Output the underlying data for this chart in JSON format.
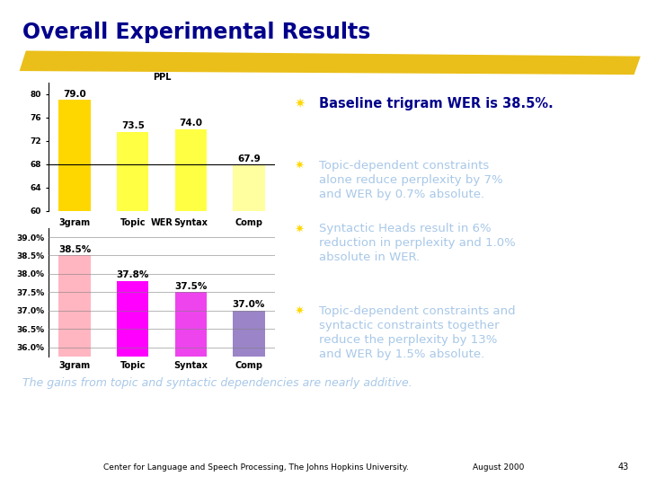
{
  "title": "Overall Experimental Results",
  "title_color": "#00008B",
  "background_color": "#FFFFFF",
  "ppl_categories": [
    "3gram",
    "Topic",
    "Syntax",
    "Comp"
  ],
  "ppl_values": [
    79.0,
    73.5,
    74.0,
    67.9
  ],
  "ppl_colors": [
    "#FFD700",
    "#FFFF44",
    "#FFFF44",
    "#FFFFA0"
  ],
  "ppl_ylabel": "PPL",
  "ppl_ylim": [
    60,
    82
  ],
  "ppl_yticks": [
    60,
    64,
    68,
    72,
    76,
    80
  ],
  "ppl_hline": 68,
  "wer_categories": [
    "3gram",
    "Topic",
    "Syntax",
    "Comp"
  ],
  "wer_values": [
    38.5,
    37.8,
    37.5,
    37.0
  ],
  "wer_colors": [
    "#FFB6C1",
    "#FF00FF",
    "#EE44EE",
    "#9B84C8"
  ],
  "wer_ylabel": "WER",
  "wer_ylim": [
    35.75,
    39.25
  ],
  "wer_ytick_labels": [
    "36.0%",
    "36.5%",
    "37.0%",
    "37.5%",
    "38.0%",
    "38.5%",
    "39.0%"
  ],
  "wer_ytick_vals": [
    36.0,
    36.5,
    37.0,
    37.5,
    38.0,
    38.5,
    39.0
  ],
  "bullet_symbol": "✷",
  "bullet_symbol_color": "#FFD700",
  "bullets": [
    {
      "text": "Baseline trigram WER is 38.5%.",
      "color": "#00008B",
      "bold": true,
      "size": 10.5
    },
    {
      "text": "Topic-dependent constraints\nalone reduce perplexity by 7%\nand WER by 0.7% absolute.",
      "color": "#A8C8E8",
      "bold": false,
      "size": 9.5
    },
    {
      "text": "Syntactic Heads result in 6%\nreduction in perplexity and 1.0%\nabsolute in WER.",
      "color": "#A8C8E8",
      "bold": false,
      "size": 9.5
    },
    {
      "text": "Topic-dependent constraints and\nsyntactic constraints together\nreduce the perplexity by 13%\nand WER by 1.5% absolute.",
      "color": "#A8C8E8",
      "bold": false,
      "size": 9.5
    }
  ],
  "bottom_text": "The gains from topic and syntactic dependencies are nearly additive.",
  "bottom_text_color": "#A8C8E8",
  "footer_left": "Center for Language and Speech Processing, The Johns Hopkins University.",
  "footer_right": "August 2000",
  "footer_page": "43",
  "gold_stripe_color": "#E8B800",
  "bar_label_color": "#000000",
  "bar_label_fontsize": 7.5
}
